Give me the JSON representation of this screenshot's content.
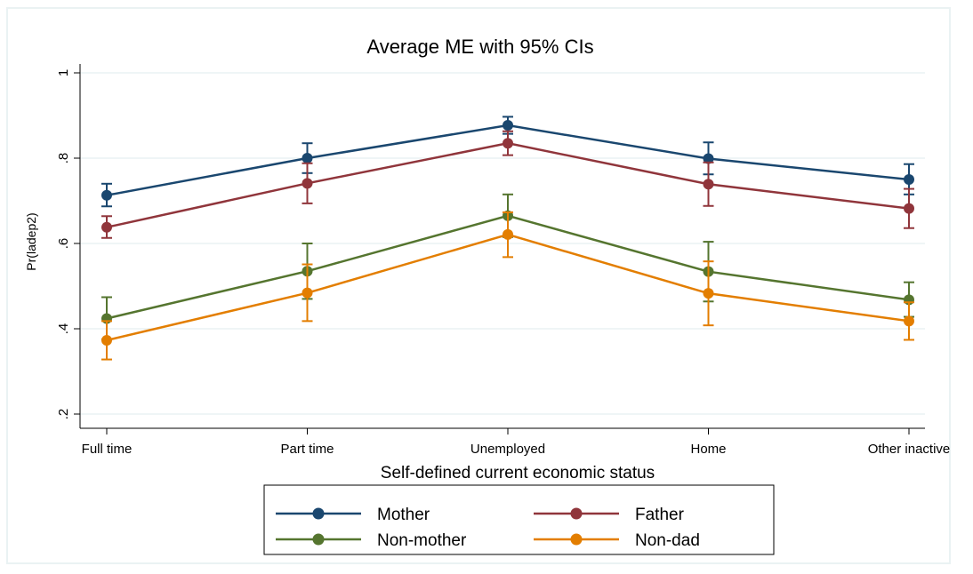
{
  "chart_data": {
    "type": "line",
    "title": "Average ME with 95% CIs",
    "xlabel": "Self-defined current economic status",
    "ylabel": "Pr(ladep2)",
    "categories": [
      "Full time",
      "Part time",
      "Unemployed",
      "Home",
      "Other inactive"
    ],
    "yticks": [
      0.2,
      0.4,
      0.6,
      0.8,
      1
    ],
    "ytick_labels": [
      ".2",
      ".4",
      ".6",
      ".8",
      "1"
    ],
    "ylim": [
      0.2,
      1.0
    ],
    "grid": true,
    "legend_position": "bottom",
    "series": [
      {
        "name": "Mother",
        "color": "#1a476f",
        "values": [
          0.713,
          0.8,
          0.877,
          0.799,
          0.75
        ],
        "lower": [
          0.687,
          0.765,
          0.857,
          0.762,
          0.715
        ],
        "upper": [
          0.74,
          0.835,
          0.897,
          0.837,
          0.786
        ]
      },
      {
        "name": "Father",
        "color": "#90353b",
        "values": [
          0.638,
          0.741,
          0.835,
          0.739,
          0.682
        ],
        "lower": [
          0.613,
          0.694,
          0.807,
          0.688,
          0.636
        ],
        "upper": [
          0.664,
          0.788,
          0.863,
          0.79,
          0.728
        ]
      },
      {
        "name": "Non-mother",
        "color": "#55752f",
        "values": [
          0.424,
          0.535,
          0.665,
          0.534,
          0.468
        ],
        "lower": [
          0.375,
          0.47,
          0.615,
          0.464,
          0.428
        ],
        "upper": [
          0.474,
          0.6,
          0.715,
          0.604,
          0.509
        ]
      },
      {
        "name": "Non-dad",
        "color": "#e37e00",
        "values": [
          0.373,
          0.484,
          0.621,
          0.483,
          0.418
        ],
        "lower": [
          0.328,
          0.418,
          0.568,
          0.408,
          0.374
        ],
        "upper": [
          0.418,
          0.551,
          0.673,
          0.558,
          0.462
        ]
      }
    ]
  },
  "colors": {
    "background": "#eaf2f3",
    "plot_background": "#ffffff",
    "grid": "#eaf2f3"
  }
}
